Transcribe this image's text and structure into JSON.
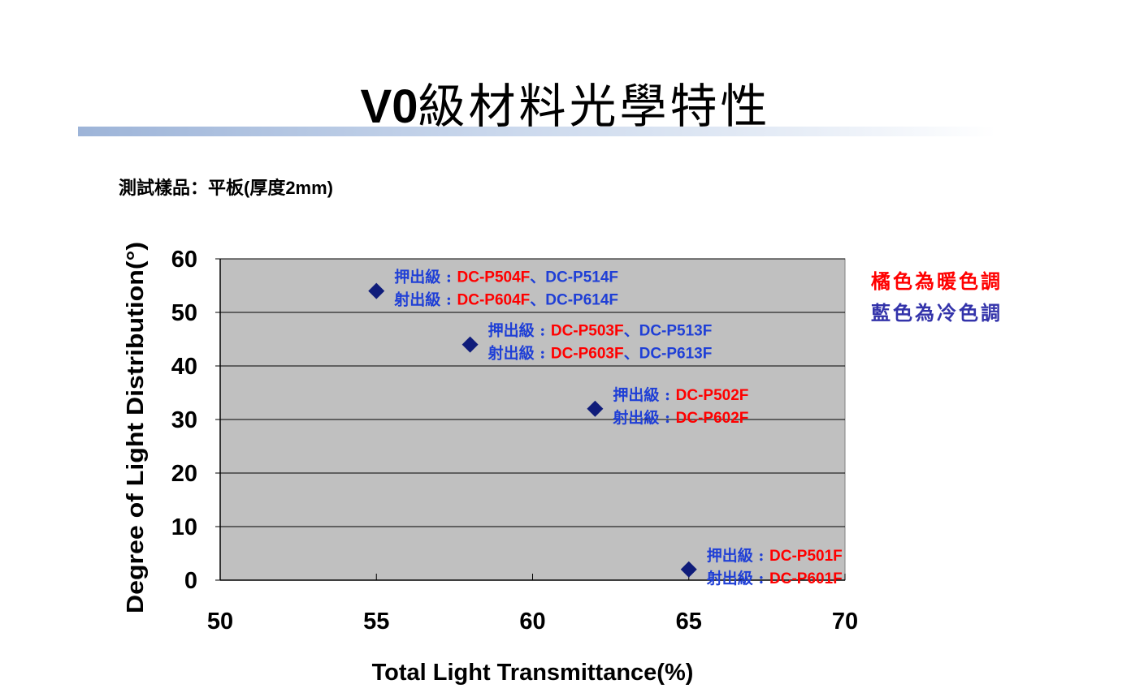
{
  "title": {
    "bold": "V0",
    "rest": "級材料光學特性"
  },
  "subtitle": "測試樣品：平板(厚度2mm)",
  "legend": {
    "warm": "橘色為暖色調",
    "cool": "藍色為冷色調"
  },
  "colors": {
    "warm": "#ff0000",
    "cool": "#1f3fd6",
    "marker": "#0f1c7a",
    "plot_bg": "#c0c0c0"
  },
  "chart_data": {
    "type": "scatter",
    "title": "",
    "xlabel": "Total Light Transmittance(%)",
    "ylabel": "Degree of Light Distribution(°)",
    "xlim": [
      50,
      70
    ],
    "ylim": [
      0,
      60
    ],
    "xticks": [
      "50",
      "55",
      "60",
      "65",
      "70"
    ],
    "yticks": [
      "0",
      "10",
      "20",
      "30",
      "40",
      "50",
      "60"
    ],
    "grid": true,
    "points": [
      {
        "x": 55,
        "y": 54,
        "labels": [
          {
            "prefix": "押出級 : ",
            "parts": [
              {
                "text": "DC-P504F",
                "tone": "warm"
              },
              {
                "text": "、",
                "tone": "cool"
              },
              {
                "text": "DC-P514F",
                "tone": "cool"
              }
            ]
          },
          {
            "prefix": "射出級 : ",
            "parts": [
              {
                "text": "DC-P604F",
                "tone": "warm"
              },
              {
                "text": "、",
                "tone": "cool"
              },
              {
                "text": "DC-P614F",
                "tone": "cool"
              }
            ]
          }
        ]
      },
      {
        "x": 58,
        "y": 44,
        "labels": [
          {
            "prefix": "押出級 : ",
            "parts": [
              {
                "text": "DC-P503F",
                "tone": "warm"
              },
              {
                "text": "、",
                "tone": "cool"
              },
              {
                "text": "DC-P513F",
                "tone": "cool"
              }
            ]
          },
          {
            "prefix": "射出級 : ",
            "parts": [
              {
                "text": "DC-P603F",
                "tone": "warm"
              },
              {
                "text": "、",
                "tone": "cool"
              },
              {
                "text": "DC-P613F",
                "tone": "cool"
              }
            ]
          }
        ]
      },
      {
        "x": 62,
        "y": 32,
        "labels": [
          {
            "prefix": "押出級 : ",
            "parts": [
              {
                "text": "DC-P502F",
                "tone": "warm"
              }
            ]
          },
          {
            "prefix": "射出級 : ",
            "parts": [
              {
                "text": "DC-P602F",
                "tone": "warm"
              }
            ]
          }
        ]
      },
      {
        "x": 65,
        "y": 2,
        "labels": [
          {
            "prefix": "押出級 : ",
            "parts": [
              {
                "text": "DC-P501F",
                "tone": "warm"
              }
            ]
          },
          {
            "prefix": "射出級 : ",
            "parts": [
              {
                "text": "DC-P601F",
                "tone": "warm"
              }
            ]
          }
        ]
      }
    ]
  }
}
